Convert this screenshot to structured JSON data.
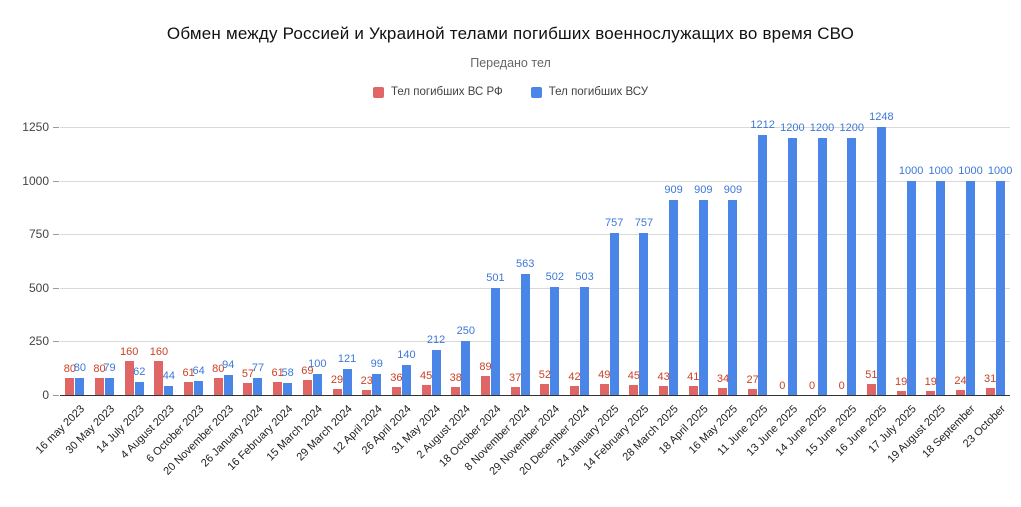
{
  "title": "Обмен между Россией и Украиной телами погибших военнослужащих во время СВО",
  "subtitle": "Передано тел",
  "legend": [
    {
      "label": "Тел погибших ВС  РФ",
      "color": "#e06666",
      "icon": "red-square-swatch"
    },
    {
      "label": "Тел погибших ВСУ",
      "color": "#4a86e8",
      "icon": "blue-square-swatch"
    }
  ],
  "chart_data": {
    "type": "bar",
    "title": "Обмен между Россией и Украиной телами погибших военнослужащих во время СВО",
    "subtitle": "Передано тел",
    "legend_position": "top",
    "grid": true,
    "ylim": [
      0,
      1250
    ],
    "yticks": [
      0,
      250,
      500,
      750,
      1000,
      1250
    ],
    "categories": [
      "16 may 2023",
      "30 May 2023",
      "14 July 2023",
      "4 August 2023",
      "6 October 2023",
      "20 November 2023",
      "26 January 2024",
      "16 February 2024",
      "15 March 2024",
      "29 March 2024",
      "12 April 2024",
      "26 April 2024",
      "31 May 2024",
      "2 August 2024",
      "18 October 2024",
      "8 November 2024",
      "29 November 2024",
      "20 December 2024",
      "24 January 2025",
      "14 February 2025",
      "28 March 2025",
      "18 April 2025",
      "16 May 2025",
      "11 June 2025",
      "13 June 2025",
      "14 June 2025",
      "15 June 2025",
      "16 June 2025",
      "17 July 2025",
      "19 August 2025",
      "18 September",
      "23 October"
    ],
    "series": [
      {
        "name": "Тел погибших ВС  РФ",
        "color": "#e06666",
        "label_color": "#cc4125",
        "values": [
          80,
          80,
          160,
          160,
          61,
          80,
          57,
          61,
          69,
          29,
          23,
          36,
          45,
          38,
          89,
          37,
          52,
          42,
          49,
          45,
          43,
          41,
          34,
          27,
          0,
          0,
          0,
          51,
          19,
          19,
          24,
          31
        ]
      },
      {
        "name": "Тел погибших ВСУ",
        "color": "#4a86e8",
        "label_color": "#3c78d8",
        "values": [
          80,
          79,
          62,
          44,
          64,
          94,
          77,
          58,
          100,
          121,
          99,
          140,
          212,
          250,
          501,
          563,
          502,
          503,
          757,
          757,
          909,
          909,
          909,
          1212,
          1200,
          1200,
          1200,
          1248,
          1000,
          1000,
          1000,
          1000
        ]
      }
    ]
  }
}
